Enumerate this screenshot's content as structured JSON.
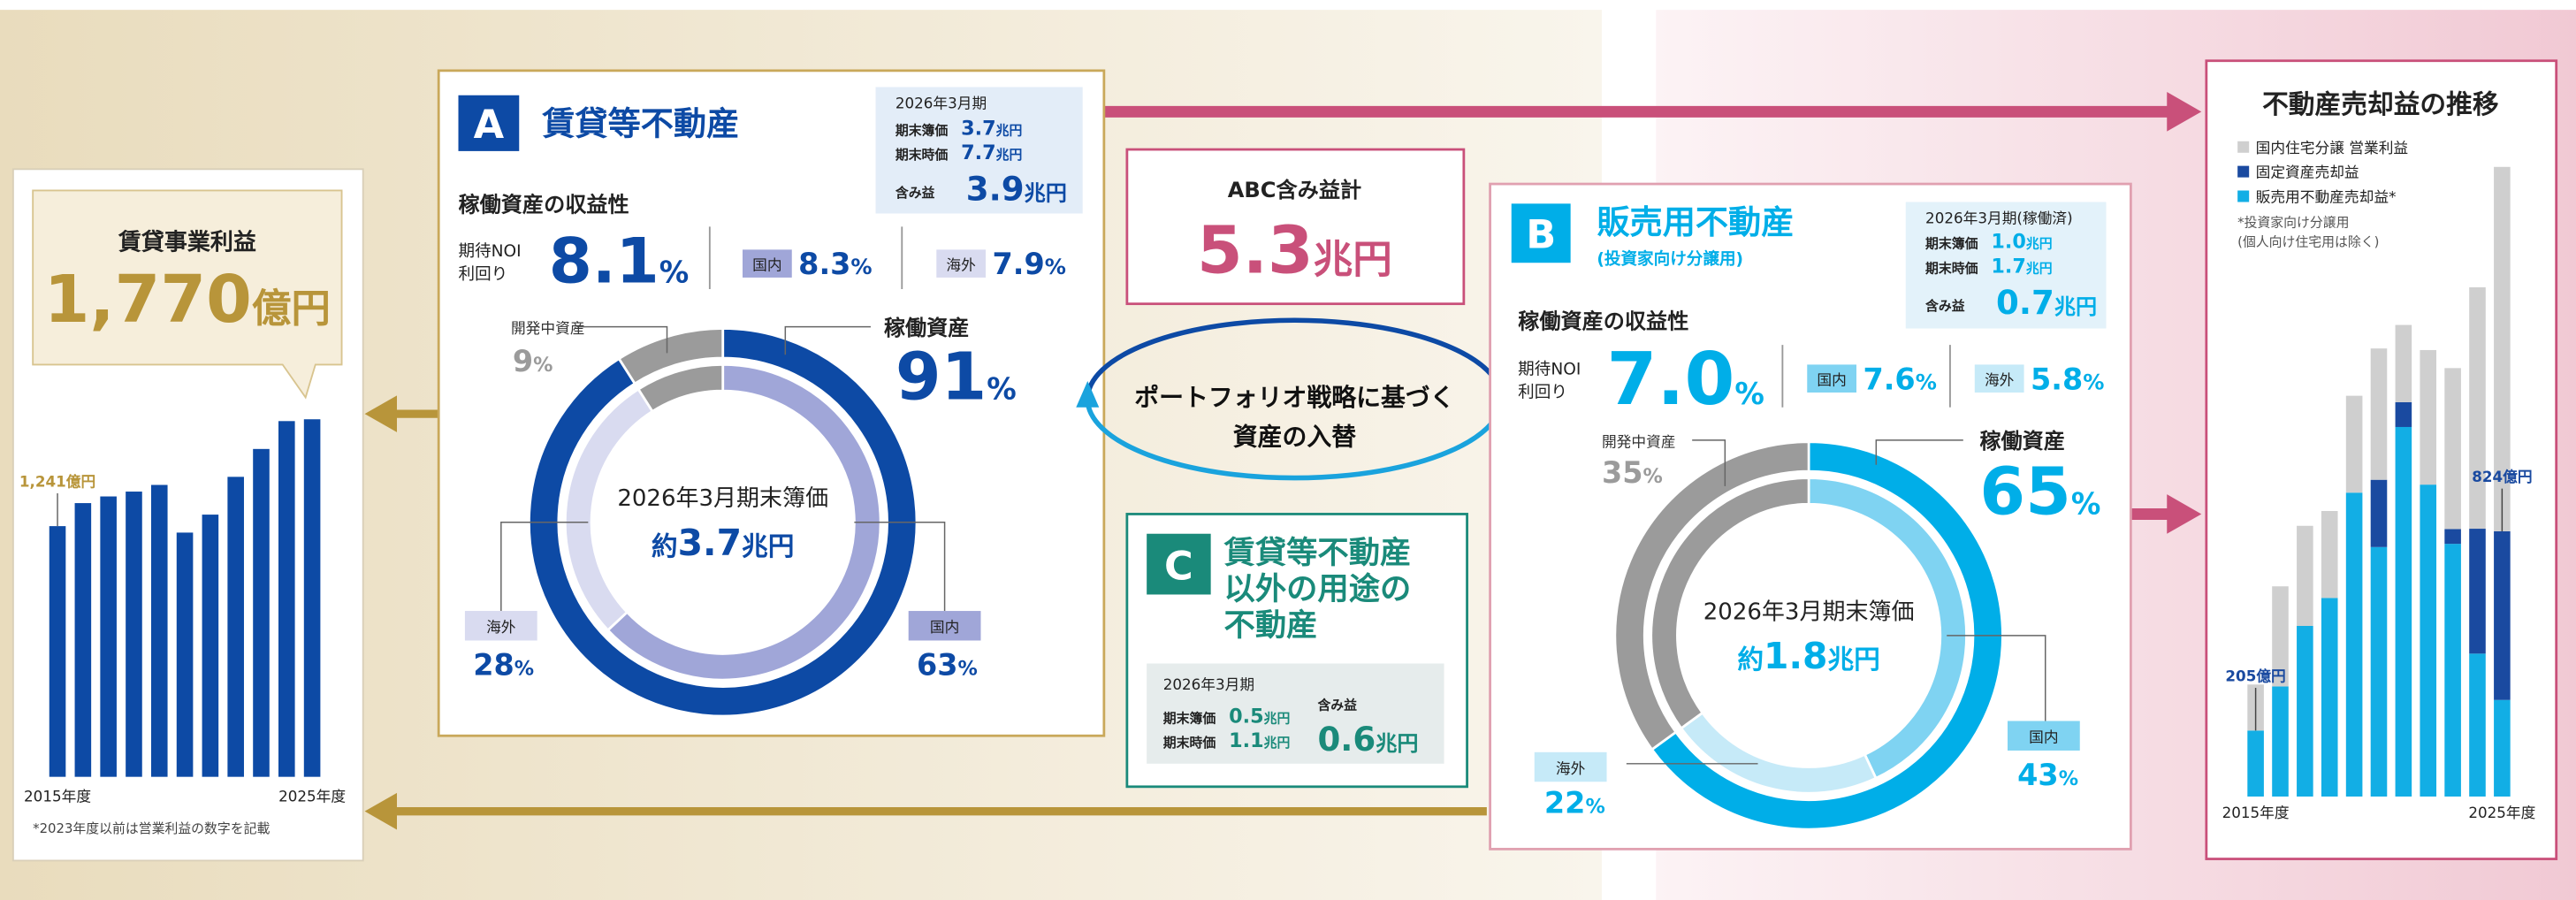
{
  "left_panel": {
    "label": "賃貸事業利益",
    "value": "1,770",
    "unit": "億円",
    "note": "*2023年度以前は営業利益の数字を記載"
  },
  "panel_a": {
    "badge": "A",
    "title": "賃貸等不動産",
    "info": {
      "period": "2026年3月期",
      "rows": [
        {
          "label": "期末簿価",
          "value": "3.7",
          "unit": "兆円"
        },
        {
          "label": "期末時価",
          "value": "7.7",
          "unit": "兆円"
        },
        {
          "label": "含み益",
          "value": "3.9",
          "unit": "兆円"
        }
      ]
    },
    "yield": {
      "heading": "稼働資産の収益性",
      "label_lines": [
        "期待NOI",
        "利回り"
      ],
      "value": "8.1",
      "unit": "%",
      "breakdown": [
        {
          "label": "国内",
          "value": "8.3",
          "unit": "%"
        },
        {
          "label": "海外",
          "value": "7.9",
          "unit": "%"
        }
      ]
    }
  },
  "abc": {
    "label": "ABC含み益計",
    "value": "5.3",
    "unit": "兆円"
  },
  "strategy": {
    "lines": [
      "ポートフォリオ戦略に基づく",
      "資産の入替"
    ]
  },
  "panel_c": {
    "badge": "C",
    "title_lines": [
      "賃貸等不動産",
      "以外の用途の",
      "不動産"
    ],
    "info": {
      "period": "2026年3月期",
      "rows": [
        {
          "label": "期末簿価",
          "value": "0.5",
          "unit": "兆円"
        },
        {
          "label": "期末時価",
          "value": "1.1",
          "unit": "兆円"
        }
      ],
      "gain": {
        "label": "含み益",
        "value": "0.6",
        "unit": "兆円"
      }
    }
  },
  "panel_b": {
    "badge": "B",
    "title": "販売用不動産",
    "subtitle": "(投資家向け分譲用)",
    "info": {
      "period": "2026年3月期(稼働済)",
      "rows": [
        {
          "label": "期末簿価",
          "value": "1.0",
          "unit": "兆円"
        },
        {
          "label": "期末時価",
          "value": "1.7",
          "unit": "兆円"
        },
        {
          "label": "含み益",
          "value": "0.7",
          "unit": "兆円"
        }
      ]
    },
    "yield": {
      "heading": "稼働資産の収益性",
      "label_lines": [
        "期待NOI",
        "利回り"
      ],
      "value": "7.0",
      "unit": "%",
      "breakdown": [
        {
          "label": "国内",
          "value": "7.6",
          "unit": "%"
        },
        {
          "label": "海外",
          "value": "5.8",
          "unit": "%"
        }
      ]
    }
  },
  "chart_data": [
    {
      "type": "bar",
      "categories": [
        "2015年度",
        null,
        null,
        null,
        null,
        null,
        null,
        null,
        null,
        null,
        "2025年度"
      ],
      "values": [
        1241,
        1355,
        1388,
        1412,
        1445,
        1209,
        1298,
        1485,
        1623,
        1761,
        1770
      ],
      "value_labels": [
        "1,241億円",
        null,
        null,
        null,
        null,
        null,
        null,
        null,
        null,
        null,
        null
      ],
      "color": "#0d4aa5",
      "ylim": [
        0,
        2000
      ]
    },
    {
      "type": "donut",
      "center": {
        "label": "2026年3月期末簿価",
        "prefix": "約",
        "value": "3.7",
        "unit": "兆円"
      },
      "unit": "%",
      "rings": [
        {
          "categories": [
            "稼働資産",
            "開発中資産"
          ],
          "values": [
            91,
            9
          ],
          "colors": [
            "#0d4aa5",
            "#9b9b9b"
          ]
        },
        {
          "categories": [
            "国内",
            "海外"
          ],
          "values": [
            63,
            28
          ],
          "colors": [
            "#a0a6d8",
            "#d9dbf0"
          ]
        }
      ]
    },
    {
      "type": "donut",
      "center": {
        "label": "2026年3月期末簿価",
        "prefix": "約",
        "value": "1.8",
        "unit": "兆円"
      },
      "unit": "%",
      "rings": [
        {
          "categories": [
            "稼働資産",
            "開発中資産"
          ],
          "values": [
            65,
            35
          ],
          "colors": [
            "#00aee8",
            "#9b9b9b"
          ]
        },
        {
          "categories": [
            "国内",
            "海外"
          ],
          "values": [
            43,
            22
          ],
          "colors": [
            "#7fd3f2",
            "#c6eaf8"
          ]
        }
      ]
    },
    {
      "type": "bar",
      "stacked": true,
      "title": "不動産売却益の推移",
      "note_lines": [
        "*投資家向け分譲用",
        "(個人向け住宅用は除く)"
      ],
      "categories": [
        "2015年度",
        null,
        null,
        null,
        null,
        null,
        null,
        null,
        null,
        null,
        "2025年度"
      ],
      "series": [
        {
          "name": "国内住宅分譲 営業利益",
          "color": "#cfcfcf",
          "values": [
            143,
            311,
            311,
            270,
            301,
            408,
            240,
            418,
            500,
            750,
            1132
          ]
        },
        {
          "name": "固定資産売却益",
          "color": "#1a4aa0",
          "values": [
            0,
            0,
            0,
            0,
            0,
            209,
            77,
            0,
            46,
            388,
            524
          ]
        },
        {
          "name": "販売用不動産売却益*",
          "color": "#12aee5",
          "values": [
            205,
            342,
            530,
            617,
            944,
            775,
            1148,
            969,
            785,
            444,
            300
          ]
        }
      ],
      "annotations": [
        {
          "category": "2015年度",
          "value": 205,
          "label": "205億円"
        },
        {
          "category": "2025年度",
          "value": 824,
          "label": "824億円"
        }
      ],
      "ylim": [
        0,
        2000
      ]
    }
  ]
}
